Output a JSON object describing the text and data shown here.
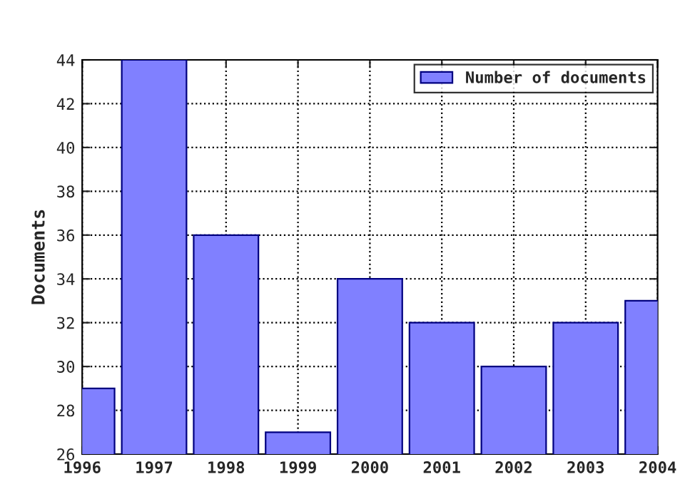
{
  "chart_data": {
    "type": "bar",
    "ylabel": "Documents",
    "x": [
      1996,
      1997,
      1998,
      1999,
      2000,
      2001,
      2002,
      2003,
      2004
    ],
    "series": [
      {
        "name": "Number of documents",
        "color": "#8080ff",
        "values": [
          29,
          44,
          36,
          27,
          34,
          32,
          30,
          32,
          33
        ]
      }
    ],
    "xlim": [
      1996,
      2004
    ],
    "xticks": [
      1996,
      1997,
      1998,
      1999,
      2000,
      2001,
      2002,
      2003,
      2004
    ],
    "ylim": [
      26,
      44
    ],
    "yticks": [
      26,
      28,
      30,
      32,
      34,
      36,
      38,
      40,
      42,
      44
    ],
    "grid": true,
    "legend": "top right",
    "line_style": "dotted"
  }
}
